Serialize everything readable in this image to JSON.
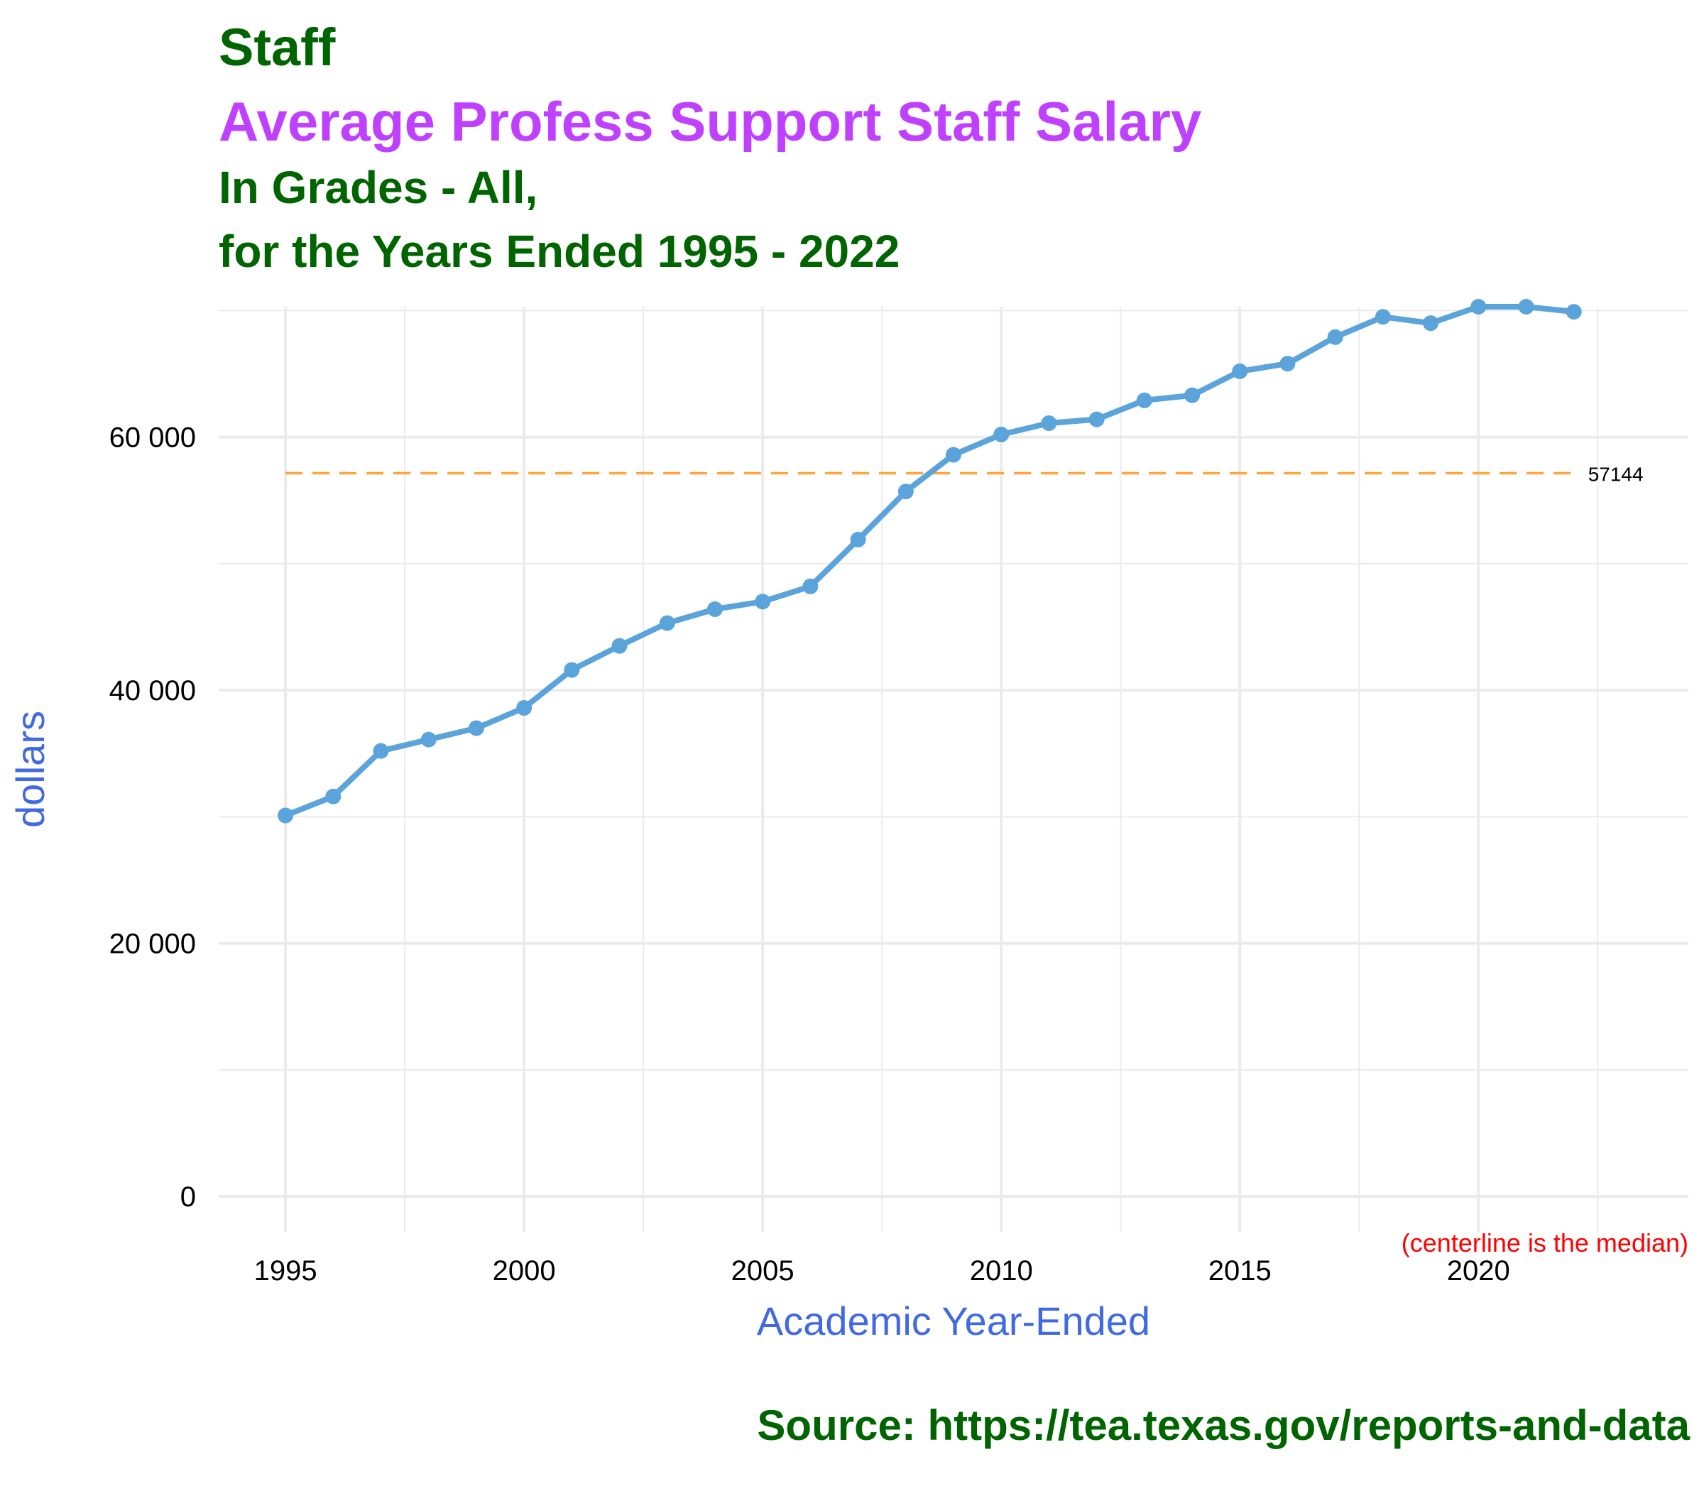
{
  "colors": {
    "title": "#006400",
    "subtitle": "#BF40FF",
    "axis_label": "#4169E1",
    "line": "#5BA3DB",
    "median_line": "#FFA53C",
    "note": "#FF0000",
    "grid": "#EBEBEB",
    "text": "#000000"
  },
  "chart_data": {
    "type": "line",
    "title": "Staff",
    "subtitle": "Average Profess Support Staff Salary",
    "caption_lines": [
      "In Grades - All,",
      "for the Years Ended 1995 - 2022"
    ],
    "xlabel": "Academic Year-Ended",
    "ylabel": "dollars",
    "x": [
      1995,
      1996,
      1997,
      1998,
      1999,
      2000,
      2001,
      2002,
      2003,
      2004,
      2005,
      2006,
      2007,
      2008,
      2009,
      2010,
      2011,
      2012,
      2013,
      2014,
      2015,
      2016,
      2017,
      2018,
      2019,
      2020,
      2021,
      2022
    ],
    "series": [
      {
        "values": [
          30100,
          31600,
          35200,
          36100,
          37000,
          38600,
          41600,
          43500,
          45300,
          46400,
          47000,
          48200,
          51900,
          55700,
          58600,
          60200,
          61100,
          61400,
          62900,
          63300,
          65200,
          65800,
          67900,
          69500,
          69000,
          70300,
          70300,
          69900
        ]
      }
    ],
    "median": 57144,
    "median_label": "57144",
    "note": "(centerline is the median)",
    "xlim": [
      1993.6,
      2024.4
    ],
    "ylim": [
      -2800,
      70300
    ],
    "xticks": [
      1995,
      2000,
      2005,
      2010,
      2015,
      2020
    ],
    "xtick_labels": [
      "1995",
      "2000",
      "2005",
      "2010",
      "2015",
      "2020"
    ],
    "yticks": [
      0,
      20000,
      40000,
      60000
    ],
    "ytick_labels": [
      "0",
      "20 000",
      "40 000",
      "60 000"
    ],
    "grid": true
  },
  "footer": {
    "source": "Source:  https://tea.texas.gov/reports-and-data"
  }
}
